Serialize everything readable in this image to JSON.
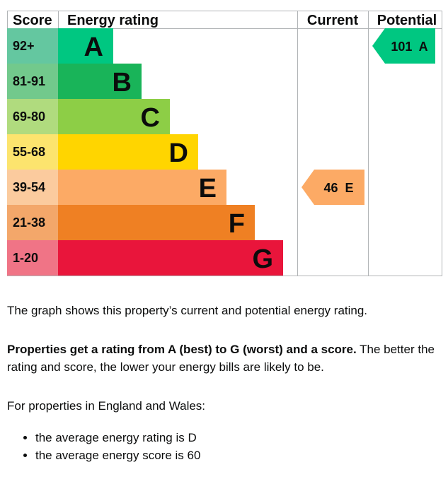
{
  "chart_data": {
    "type": "bar",
    "header": {
      "score": "Score",
      "rating": "Energy rating",
      "current": "Current",
      "potential": "Potential"
    },
    "bands": [
      {
        "range": "92+",
        "letter": "A",
        "color": "#00c781",
        "score_bg": "#64c7a0"
      },
      {
        "range": "81-91",
        "letter": "B",
        "color": "#19b459",
        "score_bg": "#72c98c"
      },
      {
        "range": "69-80",
        "letter": "C",
        "color": "#8dce46",
        "score_bg": "#b0db7e"
      },
      {
        "range": "55-68",
        "letter": "D",
        "color": "#ffd500",
        "score_bg": "#fce46e"
      },
      {
        "range": "39-54",
        "letter": "E",
        "color": "#fcaa65",
        "score_bg": "#fbcb9e"
      },
      {
        "range": "21-38",
        "letter": "F",
        "color": "#ef8023",
        "score_bg": "#f3a76a"
      },
      {
        "range": "1-20",
        "letter": "G",
        "color": "#e9153b",
        "score_bg": "#f07486"
      }
    ],
    "current": {
      "score": 46,
      "letter": "E",
      "label": "46  E",
      "color": "#fcaa65"
    },
    "potential": {
      "score": 101,
      "letter": "A",
      "label": "101  A",
      "color": "#00c781"
    }
  },
  "text": {
    "para1": "The graph shows this property’s current and potential energy rating.",
    "para2_bold": "Properties get a rating from A (best) to G (worst) and a score.",
    "para2_rest": " The better the rating and score, the lower your energy bills are likely to be.",
    "para3": "For properties in England and Wales:",
    "bullets": [
      "the average energy rating is D",
      "the average energy score is 60"
    ]
  }
}
